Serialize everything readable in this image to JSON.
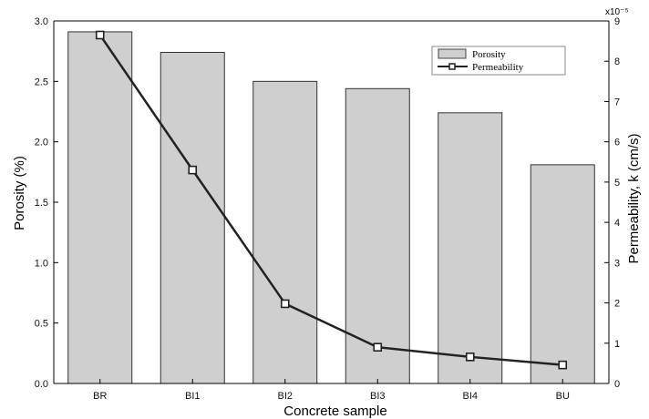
{
  "chart_data": {
    "type": "bar",
    "title": "",
    "categories": [
      "BR",
      "BI1",
      "BI2",
      "BI3",
      "BI4",
      "BU"
    ],
    "series": [
      {
        "name": "Porosity",
        "type": "bar",
        "axis": "left",
        "values": [
          2.91,
          2.74,
          2.5,
          2.44,
          2.24,
          1.81
        ],
        "color": "#cfcfcf"
      },
      {
        "name": "Permeability",
        "type": "line",
        "axis": "right",
        "values": [
          8.65,
          5.3,
          1.98,
          0.9,
          0.66,
          0.46
        ],
        "color": "#222222",
        "marker": "square"
      }
    ],
    "xlabel": "Concrete sample",
    "ylabel": "Porosity (%)",
    "y2label": "Permeability, k (cm/s)",
    "y2_multiplier": "x10⁻⁵",
    "ylim": [
      0,
      3.0
    ],
    "y2lim": [
      0,
      9
    ],
    "yticks": [
      "0.0",
      "0.5",
      "1.0",
      "1.5",
      "2.0",
      "2.5",
      "3.0"
    ],
    "y2ticks": [
      "0",
      "1",
      "2",
      "3",
      "4",
      "5",
      "6",
      "7",
      "8",
      "9"
    ],
    "legend_position": "top-right",
    "grid": false
  }
}
